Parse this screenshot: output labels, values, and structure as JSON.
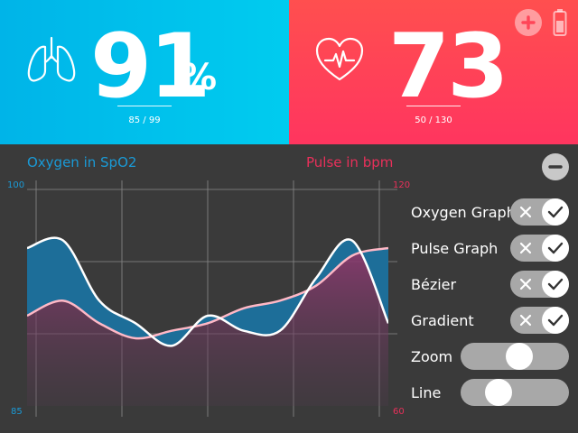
{
  "spo2": {
    "value": "91",
    "unit": "%",
    "range": "85 / 99",
    "icon": "lungs-icon",
    "color": "#00c0ec"
  },
  "pulse": {
    "value": "73",
    "range": "50 / 130",
    "icon": "heart-pulse-icon",
    "color": "#ff4558"
  },
  "header_buttons": {
    "add": "plus-icon",
    "battery": "battery-icon"
  },
  "chart": {
    "title_left": "Oxygen in SpO2",
    "title_right": "Pulse in bpm",
    "left_axis": {
      "top": "100",
      "bottom": "85",
      "color": "#1a9ad6"
    },
    "right_axis": {
      "top": "120",
      "bottom": "60",
      "color": "#e8305a"
    }
  },
  "chart_data": {
    "type": "line",
    "title": "",
    "x": [
      0,
      1,
      2,
      3,
      4,
      5,
      6,
      7,
      8,
      9,
      10
    ],
    "series": [
      {
        "name": "Oxygen in SpO2",
        "axis": "left",
        "ylim": [
          85,
          100
        ],
        "values": [
          95.5,
          96.0,
          92.0,
          90.5,
          89.0,
          91.0,
          90.0,
          90.0,
          93.5,
          96.0,
          90.5
        ]
      },
      {
        "name": "Pulse in bpm",
        "axis": "right",
        "ylim": [
          60,
          120
        ],
        "values": [
          84,
          88,
          82,
          78,
          80,
          82,
          86,
          88,
          92,
          100,
          102
        ]
      }
    ],
    "grid": true,
    "legend": "top"
  },
  "controls": {
    "collapse": "minus-icon",
    "items": [
      {
        "label": "Oxygen Graph",
        "type": "toggle",
        "on": true
      },
      {
        "label": "Pulse Graph",
        "type": "toggle",
        "on": true
      },
      {
        "label": "Bézier",
        "type": "toggle",
        "on": true
      },
      {
        "label": "Gradient",
        "type": "toggle",
        "on": true
      },
      {
        "label": "Zoom",
        "type": "slider",
        "value": 0.55
      },
      {
        "label": "Line",
        "type": "slider",
        "value": 0.3
      }
    ]
  }
}
